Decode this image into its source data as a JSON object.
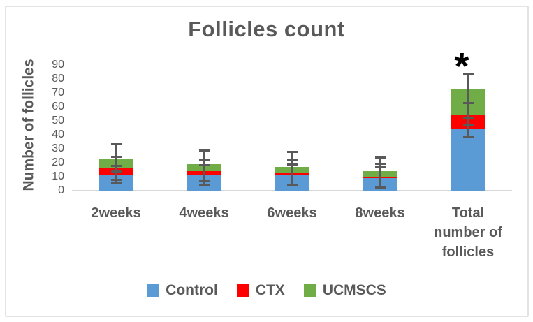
{
  "chart_data": {
    "type": "bar",
    "stacked": true,
    "title": "Follicles count",
    "xlabel": "",
    "ylabel": "Number of follicles",
    "ylim": [
      0,
      90
    ],
    "yticks": [
      0,
      10,
      20,
      30,
      40,
      50,
      60,
      70,
      80,
      90
    ],
    "grid": false,
    "legend_position": "bottom",
    "categories": [
      "2weeks",
      "4weeks",
      "6weeks",
      "8weeks",
      "Total number of follicles"
    ],
    "series": [
      {
        "name": "Control",
        "color": "#5B9BD5",
        "values": [
          11,
          11,
          11,
          9,
          44
        ]
      },
      {
        "name": "CTX",
        "color": "#FF0000",
        "values": [
          5,
          3,
          2,
          1,
          10
        ]
      },
      {
        "name": "UCMSCS",
        "color": "#70AD47",
        "values": [
          7,
          5,
          4,
          4,
          19
        ]
      }
    ],
    "stack_totals": [
      23,
      19,
      17,
      14,
      73
    ],
    "error_bars": [
      {
        "category": "2weeks",
        "low": 6,
        "high": 33.5,
        "crossbars": [
          24.5,
          18,
          14,
          8
        ]
      },
      {
        "category": "4weeks",
        "low": 4.5,
        "high": 29,
        "crossbars": [
          22,
          18.5,
          7
        ]
      },
      {
        "category": "6weeks",
        "low": 4.5,
        "high": 28,
        "crossbars": [
          22,
          19
        ]
      },
      {
        "category": "8weeks",
        "low": 2.5,
        "high": 24,
        "crossbars": [
          19.5,
          17
        ]
      },
      {
        "category": "Total number of follicles",
        "low": 38.5,
        "high": 83.5,
        "crossbars": [
          63,
          52,
          47
        ]
      }
    ],
    "annotations": [
      {
        "text": "*",
        "category": "Total number of follicles"
      }
    ],
    "text_color": "#595959",
    "axis_color": "#D9D9D9",
    "error_bar_color": "#595959",
    "annotation_color": "#000000"
  }
}
